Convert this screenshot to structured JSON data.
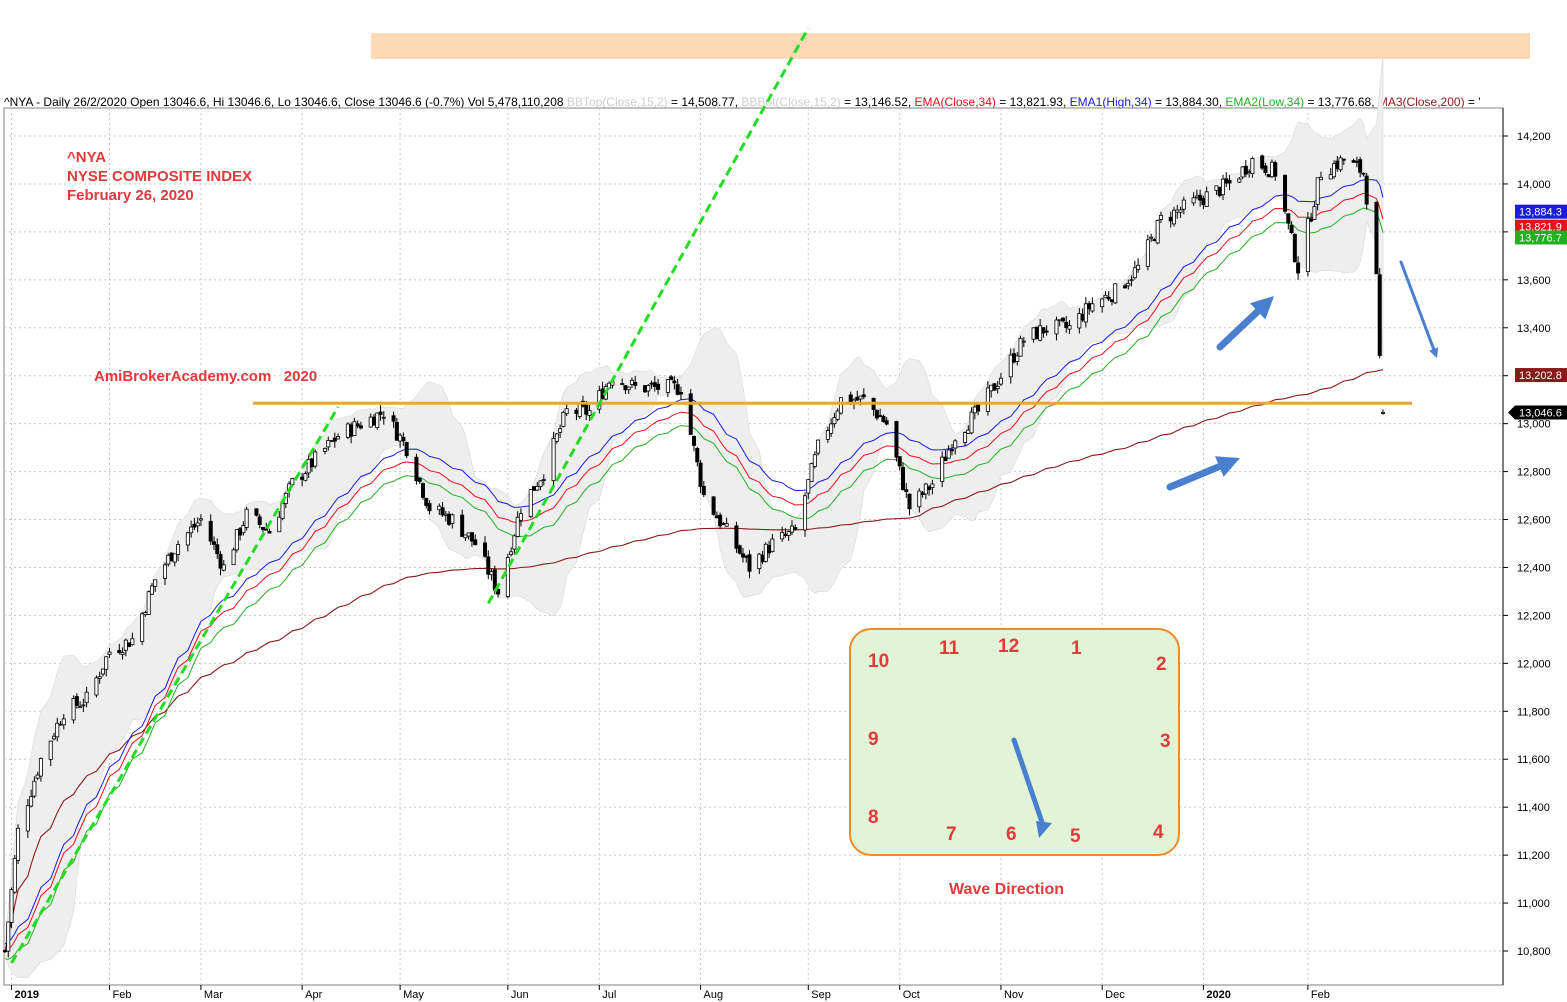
{
  "header": {
    "part1": "^NYA - Daily 26/2/2020 Open 13046.6, Hi 13046.6, Lo 13046.6, Close 13046.6 (-0.7%) Vol 5,478,110,208",
    "bbtop_label": "BBTop(Close,15,2)",
    "bbtop_value": "= 14,508.77,",
    "bbbot_label": "BBBot(Close,15,2)",
    "bbbot_value": "= 13,146.52,",
    "ema_label": "EMA(Close,34)",
    "ema_value": "= 13,821.93,",
    "ema1_label": "EMA1(High,34)",
    "ema1_value": "= 13,884.30,",
    "ema2_label": "EMA2(Low,34)",
    "ema2_value": "= 13,776.68,",
    "ma3_label": "MA3(Close,200)",
    "ma3_value": "= '"
  },
  "title": {
    "symbol": "^NYA",
    "name": "NYSE COMPOSITE INDEX",
    "date": "February 26, 2020",
    "watermark": "AmiBrokerAcademy.com   2020"
  },
  "clock": {
    "numbers": [
      "12",
      "1",
      "2",
      "3",
      "4",
      "5",
      "6",
      "7",
      "8",
      "9",
      "10",
      "11"
    ],
    "caption": "Wave Direction"
  },
  "colors": {
    "price": "#000000",
    "ema": "#e8101a",
    "ema1": "#1a1ae0",
    "ema2": "#20b020",
    "ma3": "#8a1a1a",
    "bands": "#d8d8d8",
    "resistance": "#f0a040",
    "trendline": "#22dd22",
    "arrow": "#4a7fd0",
    "banner": "#fdd9b5",
    "title": "#e23a3a"
  },
  "chart_data": {
    "type": "candlestick",
    "symbol": "^NYA",
    "period": "Daily",
    "y_axis": {
      "min": 10700,
      "max": 14300,
      "ticks": [
        10800,
        11000,
        11200,
        11400,
        11600,
        11800,
        12000,
        12200,
        12400,
        12600,
        12800,
        13000,
        13200,
        13400,
        13600,
        13800,
        14000,
        14200
      ],
      "tick_labels": [
        "10,800",
        "11,000",
        "11,200",
        "11,400",
        "11,600",
        "11,800",
        "12,000",
        "12,200",
        "12,400",
        "12,600",
        "12,800",
        "13,000",
        "13,200",
        "13,400",
        "13,600",
        "13,800",
        "14,000",
        "14,200"
      ]
    },
    "x_axis": {
      "labels": [
        {
          "date": "2019-01-02",
          "label": "2019"
        },
        {
          "date": "2019-02-01",
          "label": "Feb"
        },
        {
          "date": "2019-03-01",
          "label": "Mar"
        },
        {
          "date": "2019-04-01",
          "label": "Apr"
        },
        {
          "date": "2019-05-01",
          "label": "May"
        },
        {
          "date": "2019-06-03",
          "label": "Jun"
        },
        {
          "date": "2019-07-01",
          "label": "Jul"
        },
        {
          "date": "2019-08-01",
          "label": "Aug"
        },
        {
          "date": "2019-09-03",
          "label": "Sep"
        },
        {
          "date": "2019-10-01",
          "label": "Oct"
        },
        {
          "date": "2019-11-01",
          "label": "Nov"
        },
        {
          "date": "2019-12-02",
          "label": "Dec"
        },
        {
          "date": "2020-01-02",
          "label": "2020"
        },
        {
          "date": "2020-02-03",
          "label": "Feb"
        }
      ]
    },
    "price_path": [
      [
        "2018-12-31",
        10800
      ],
      [
        "2019-01-04",
        11300
      ],
      [
        "2019-01-11",
        11600
      ],
      [
        "2019-01-18",
        11800
      ],
      [
        "2019-01-25",
        11850
      ],
      [
        "2019-02-01",
        12050
      ],
      [
        "2019-02-08",
        12100
      ],
      [
        "2019-02-15",
        12350
      ],
      [
        "2019-02-22",
        12500
      ],
      [
        "2019-03-01",
        12600
      ],
      [
        "2019-03-08",
        12400
      ],
      [
        "2019-03-15",
        12620
      ],
      [
        "2019-03-22",
        12550
      ],
      [
        "2019-03-29",
        12750
      ],
      [
        "2019-04-05",
        12850
      ],
      [
        "2019-04-12",
        12950
      ],
      [
        "2019-04-19",
        13000
      ],
      [
        "2019-04-26",
        13050
      ],
      [
        "2019-05-03",
        12900
      ],
      [
        "2019-05-10",
        12650
      ],
      [
        "2019-05-17",
        12600
      ],
      [
        "2019-05-24",
        12500
      ],
      [
        "2019-05-31",
        12300
      ],
      [
        "2019-06-07",
        12650
      ],
      [
        "2019-06-14",
        12800
      ],
      [
        "2019-06-21",
        13050
      ],
      [
        "2019-06-28",
        13050
      ],
      [
        "2019-07-05",
        13200
      ],
      [
        "2019-07-12",
        13150
      ],
      [
        "2019-07-19",
        13150
      ],
      [
        "2019-07-26",
        13150
      ],
      [
        "2019-08-02",
        12700
      ],
      [
        "2019-08-09",
        12550
      ],
      [
        "2019-08-16",
        12400
      ],
      [
        "2019-08-23",
        12500
      ],
      [
        "2019-08-30",
        12550
      ],
      [
        "2019-09-06",
        12900
      ],
      [
        "2019-09-13",
        13100
      ],
      [
        "2019-09-20",
        13100
      ],
      [
        "2019-09-27",
        13000
      ],
      [
        "2019-10-04",
        12650
      ],
      [
        "2019-10-11",
        12750
      ],
      [
        "2019-10-18",
        12950
      ],
      [
        "2019-10-25",
        13050
      ],
      [
        "2019-11-01",
        13200
      ],
      [
        "2019-11-08",
        13350
      ],
      [
        "2019-11-15",
        13400
      ],
      [
        "2019-11-22",
        13400
      ],
      [
        "2019-11-29",
        13500
      ],
      [
        "2019-12-06",
        13550
      ],
      [
        "2019-12-13",
        13650
      ],
      [
        "2019-12-20",
        13850
      ],
      [
        "2019-12-27",
        13900
      ],
      [
        "2020-01-03",
        13950
      ],
      [
        "2020-01-10",
        14000
      ],
      [
        "2020-01-17",
        14100
      ],
      [
        "2020-01-24",
        14050
      ],
      [
        "2020-01-31",
        13650
      ],
      [
        "2020-02-07",
        14050
      ],
      [
        "2020-02-14",
        14100
      ],
      [
        "2020-02-20",
        14050
      ],
      [
        "2020-02-21",
        13950
      ],
      [
        "2020-02-24",
        13600
      ],
      [
        "2020-02-25",
        13250
      ],
      [
        "2020-02-26",
        13046.6
      ]
    ],
    "last_bar": {
      "date": "2020-02-26",
      "open": 13046.6,
      "high": 13046.6,
      "low": 13046.6,
      "close": 13046.6,
      "change_pct": -0.7,
      "volume": 5478110208
    },
    "indicators": [
      {
        "name": "BBTop(Close,15,2)",
        "last": 14508.77
      },
      {
        "name": "BBBot(Close,15,2)",
        "last": 13146.52
      },
      {
        "name": "EMA(Close,34)",
        "last": 13821.93
      },
      {
        "name": "EMA1(High,34)",
        "last": 13884.3
      },
      {
        "name": "EMA2(Low,34)",
        "last": 13776.68
      },
      {
        "name": "MA3(Close,200)",
        "last": 13202.8
      }
    ],
    "right_labels": [
      {
        "text": "13,884.3",
        "value": 13884.3,
        "color": "#1a1ae0"
      },
      {
        "text": "13,821.9",
        "value": 13821.9,
        "color": "#e8101a"
      },
      {
        "text": "13,776.7",
        "value": 13776.7,
        "color": "#20b020"
      },
      {
        "text": "13,202.8",
        "value": 13202.8,
        "color": "#8a1a1a"
      },
      {
        "text": "13,046.6",
        "value": 13046.6,
        "color": "#000000"
      }
    ],
    "resistance_level": 13085,
    "trendlines": [
      {
        "from": [
          "2019-01-02",
          10750
        ],
        "to": [
          "2019-04-12",
          13070
        ]
      },
      {
        "from": [
          "2019-05-28",
          12250
        ],
        "to": [
          "2019-09-03",
          14650
        ]
      }
    ]
  }
}
